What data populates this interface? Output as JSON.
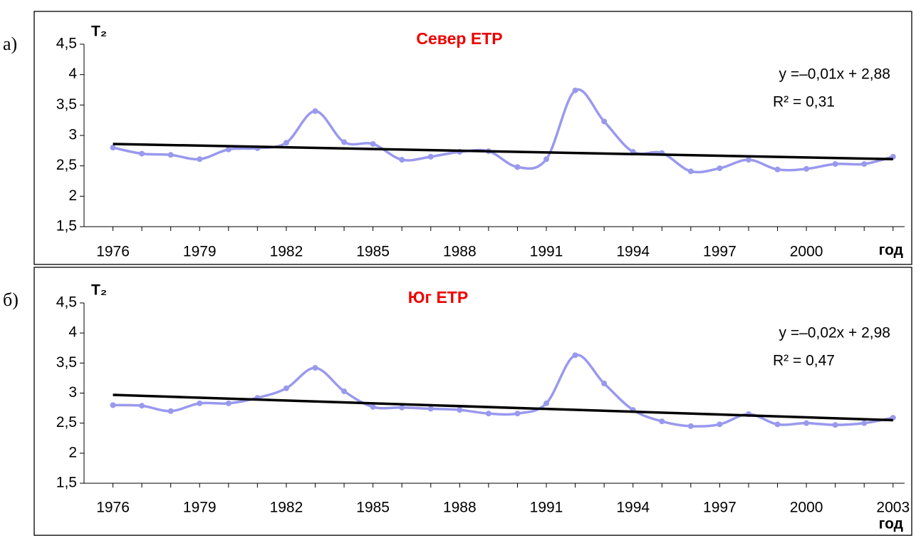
{
  "chart_data": [
    {
      "type": "line",
      "panel": "а)",
      "title": "Север ETP",
      "y_label": "T₂",
      "x_label": "год",
      "x": [
        1976,
        1977,
        1978,
        1979,
        1980,
        1981,
        1982,
        1983,
        1984,
        1985,
        1986,
        1987,
        1988,
        1989,
        1990,
        1991,
        1992,
        1993,
        1994,
        1995,
        1996,
        1997,
        1998,
        1999,
        2000,
        2001,
        2002,
        2003
      ],
      "series": [
        {
          "color": "#9999ee",
          "values": [
            2.8,
            2.7,
            2.68,
            2.61,
            2.77,
            2.79,
            2.88,
            3.4,
            2.89,
            2.86,
            2.6,
            2.65,
            2.73,
            2.74,
            2.48,
            2.61,
            3.74,
            3.23,
            2.73,
            2.71,
            2.41,
            2.46,
            2.6,
            2.44,
            2.45,
            2.53,
            2.53,
            2.65
          ]
        }
      ],
      "trend": {
        "x": [
          1976,
          2003
        ],
        "values": [
          2.86,
          2.61
        ],
        "color": "#000000"
      },
      "annotations": [
        "y =–0,01x + 2,88",
        "R² = 0,31"
      ],
      "xlim": [
        1975,
        2003.4
      ],
      "xticks": [
        1976,
        1979,
        1982,
        1985,
        1988,
        1991,
        1994,
        1997,
        2000
      ],
      "ylim": [
        1.5,
        4.5
      ],
      "yticks": [
        {
          "value": 1.5,
          "label": "1,5"
        },
        2,
        {
          "value": 2.5,
          "label": "2,5"
        },
        3,
        {
          "value": 3.5,
          "label": "3,5"
        },
        4,
        {
          "value": 4.5,
          "label": "4,5"
        }
      ]
    },
    {
      "type": "line",
      "panel": "б)",
      "title": "Юг ETP",
      "y_label": "T₂",
      "x_label": "год",
      "x": [
        1976,
        1977,
        1978,
        1979,
        1980,
        1981,
        1982,
        1983,
        1984,
        1985,
        1986,
        1987,
        1988,
        1989,
        1990,
        1991,
        1992,
        1993,
        1994,
        1995,
        1996,
        1997,
        1998,
        1999,
        2000,
        2001,
        2002,
        2003
      ],
      "series": [
        {
          "color": "#9999ee",
          "values": [
            2.8,
            2.79,
            2.7,
            2.83,
            2.83,
            2.92,
            3.08,
            3.42,
            3.03,
            2.77,
            2.76,
            2.74,
            2.72,
            2.66,
            2.66,
            2.83,
            3.63,
            3.16,
            2.72,
            2.53,
            2.45,
            2.48,
            2.65,
            2.48,
            2.5,
            2.47,
            2.5,
            2.59
          ]
        }
      ],
      "trend": {
        "x": [
          1976,
          2003
        ],
        "values": [
          2.97,
          2.55
        ],
        "color": "#000000"
      },
      "annotations": [
        "y =–0,02x + 2,98",
        "R² = 0,47"
      ],
      "xlim": [
        1975,
        2003.4
      ],
      "xticks": [
        1976,
        1979,
        1982,
        1985,
        1988,
        1991,
        1994,
        1997,
        2000,
        2003
      ],
      "ylim": [
        1.5,
        4.5
      ],
      "yticks": [
        {
          "value": 1.5,
          "label": "1,5"
        },
        2,
        {
          "value": 2.5,
          "label": "2,5"
        },
        3,
        {
          "value": 3.5,
          "label": "3,5"
        },
        4,
        {
          "value": 4.5,
          "label": "4,5"
        }
      ]
    }
  ]
}
